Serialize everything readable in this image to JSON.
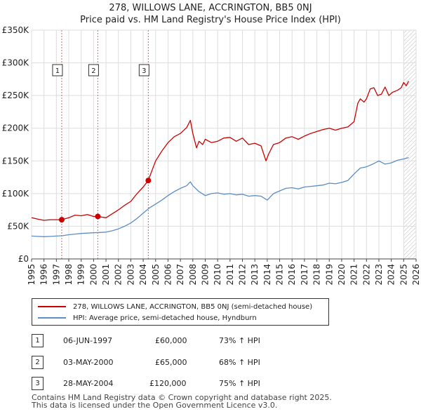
{
  "title": "278, WILLOWS LANE, ACCRINGTON, BB5 0NJ",
  "subtitle": "Price paid vs. HM Land Registry's House Price Index (HPI)",
  "colors": {
    "property": "#cc0000",
    "hpi": "#5b8ec5",
    "marker": "#cc0000",
    "grid": "#dddddd"
  },
  "legend": {
    "property_label": "278, WILLOWS LANE, ACCRINGTON, BB5 0NJ (semi-detached house)",
    "hpi_label": "HPI: Average price, semi-detached house, Hyndburn"
  },
  "transactions": [
    {
      "num": "1",
      "date": "06-JUN-1997",
      "price": "£60,000",
      "hpi_change": "73% ↑ HPI"
    },
    {
      "num": "2",
      "date": "03-MAY-2000",
      "price": "£65,000",
      "hpi_change": "68% ↑ HPI"
    },
    {
      "num": "3",
      "date": "28-MAY-2004",
      "price": "£120,000",
      "hpi_change": "75% ↑ HPI"
    }
  ],
  "footer": {
    "line1": "Contains HM Land Registry data © Crown copyright and database right 2025.",
    "line2": "This data is licensed under the Open Government Licence v3.0."
  },
  "chart_data": {
    "type": "line",
    "title": "278, WILLOWS LANE, ACCRINGTON, BB5 0NJ",
    "subtitle": "Price paid vs. HM Land Registry's House Price Index (HPI)",
    "xlim": [
      1995,
      2026
    ],
    "ylim": [
      0,
      350000
    ],
    "x_ticks": [
      1995,
      1996,
      1997,
      1998,
      1999,
      2000,
      2001,
      2002,
      2003,
      2004,
      2005,
      2006,
      2007,
      2008,
      2009,
      2010,
      2011,
      2012,
      2013,
      2014,
      2015,
      2016,
      2017,
      2018,
      2019,
      2020,
      2021,
      2022,
      2023,
      2024,
      2025,
      2026
    ],
    "y_ticks": [
      {
        "value": 0,
        "label": "£0"
      },
      {
        "value": 50000,
        "label": "£50K"
      },
      {
        "value": 100000,
        "label": "£100K"
      },
      {
        "value": 150000,
        "label": "£150K"
      },
      {
        "value": 200000,
        "label": "£200K"
      },
      {
        "value": 250000,
        "label": "£250K"
      },
      {
        "value": 300000,
        "label": "£300K"
      },
      {
        "value": 350000,
        "label": "£350K"
      }
    ],
    "grid": true,
    "sale_markers": [
      {
        "label": "1",
        "x": 1997.43,
        "y": 60000
      },
      {
        "label": "2",
        "x": 2000.34,
        "y": 65000
      },
      {
        "label": "3",
        "x": 2004.41,
        "y": 120000
      }
    ],
    "hatched_from": 2025.0,
    "series": [
      {
        "name": "278, WILLOWS LANE, ACCRINGTON, BB5 0NJ (semi-detached house)",
        "color": "#cc0000",
        "x": [
          1995.0,
          1995.5,
          1996.0,
          1996.5,
          1997.0,
          1997.43,
          1998.0,
          1998.5,
          1999.0,
          1999.5,
          2000.0,
          2000.34,
          2001.0,
          2001.5,
          2002.0,
          2002.5,
          2003.0,
          2003.5,
          2004.0,
          2004.41,
          2004.7,
          2005.0,
          2005.5,
          2006.0,
          2006.5,
          2007.0,
          2007.5,
          2007.8,
          2008.0,
          2008.3,
          2008.5,
          2008.8,
          2009.0,
          2009.5,
          2010.0,
          2010.5,
          2011.0,
          2011.5,
          2012.0,
          2012.5,
          2013.0,
          2013.5,
          2013.9,
          2014.1,
          2014.5,
          2015.0,
          2015.5,
          2016.0,
          2016.5,
          2017.0,
          2017.5,
          2018.0,
          2018.5,
          2019.0,
          2019.5,
          2020.0,
          2020.5,
          2021.0,
          2021.3,
          2021.5,
          2021.8,
          2022.0,
          2022.3,
          2022.6,
          2022.9,
          2023.2,
          2023.5,
          2023.8,
          2024.1,
          2024.5,
          2024.8,
          2025.0,
          2025.2,
          2025.4
        ],
        "values": [
          63000,
          61000,
          59000,
          60000,
          60000,
          60000,
          63000,
          67000,
          66000,
          68000,
          65000,
          65000,
          63000,
          69000,
          75000,
          82000,
          88000,
          100000,
          110000,
          120000,
          135000,
          150000,
          165000,
          178000,
          187000,
          192000,
          201000,
          212000,
          192000,
          170000,
          180000,
          175000,
          183000,
          178000,
          180000,
          185000,
          186000,
          180000,
          185000,
          175000,
          177000,
          173000,
          150000,
          160000,
          175000,
          178000,
          185000,
          187000,
          183000,
          188000,
          192000,
          195000,
          198000,
          200000,
          197000,
          200000,
          202000,
          210000,
          238000,
          245000,
          240000,
          245000,
          260000,
          262000,
          250000,
          252000,
          263000,
          250000,
          255000,
          258000,
          262000,
          270000,
          265000,
          272000
        ]
      },
      {
        "name": "HPI: Average price, semi-detached house, Hyndburn",
        "color": "#5b8ec5",
        "x": [
          1995.0,
          1995.5,
          1996.0,
          1996.5,
          1997.0,
          1997.5,
          1998.0,
          1998.5,
          1999.0,
          1999.5,
          2000.0,
          2000.5,
          2001.0,
          2001.5,
          2002.0,
          2002.5,
          2003.0,
          2003.5,
          2004.0,
          2004.5,
          2005.0,
          2005.5,
          2006.0,
          2006.5,
          2007.0,
          2007.5,
          2007.8,
          2008.0,
          2008.5,
          2009.0,
          2009.5,
          2010.0,
          2010.5,
          2011.0,
          2011.5,
          2012.0,
          2012.5,
          2013.0,
          2013.5,
          2014.0,
          2014.5,
          2015.0,
          2015.5,
          2016.0,
          2016.5,
          2017.0,
          2017.5,
          2018.0,
          2018.5,
          2019.0,
          2019.5,
          2020.0,
          2020.5,
          2021.0,
          2021.5,
          2022.0,
          2022.5,
          2023.0,
          2023.5,
          2024.0,
          2024.5,
          2025.0,
          2025.4
        ],
        "values": [
          35000,
          34500,
          34000,
          34500,
          35000,
          35500,
          37000,
          38000,
          39000,
          39500,
          40000,
          40500,
          41000,
          43000,
          46000,
          50000,
          55000,
          62000,
          70000,
          78000,
          84000,
          90000,
          97000,
          103000,
          108000,
          112000,
          118000,
          112000,
          103000,
          97000,
          100000,
          101000,
          99000,
          100000,
          98000,
          99000,
          96000,
          97000,
          96000,
          90000,
          100000,
          104000,
          108000,
          109000,
          107000,
          110000,
          111000,
          112000,
          113000,
          116000,
          115000,
          117000,
          120000,
          130000,
          139000,
          141000,
          145000,
          150000,
          145000,
          147000,
          151000,
          153000,
          155000
        ]
      }
    ]
  }
}
